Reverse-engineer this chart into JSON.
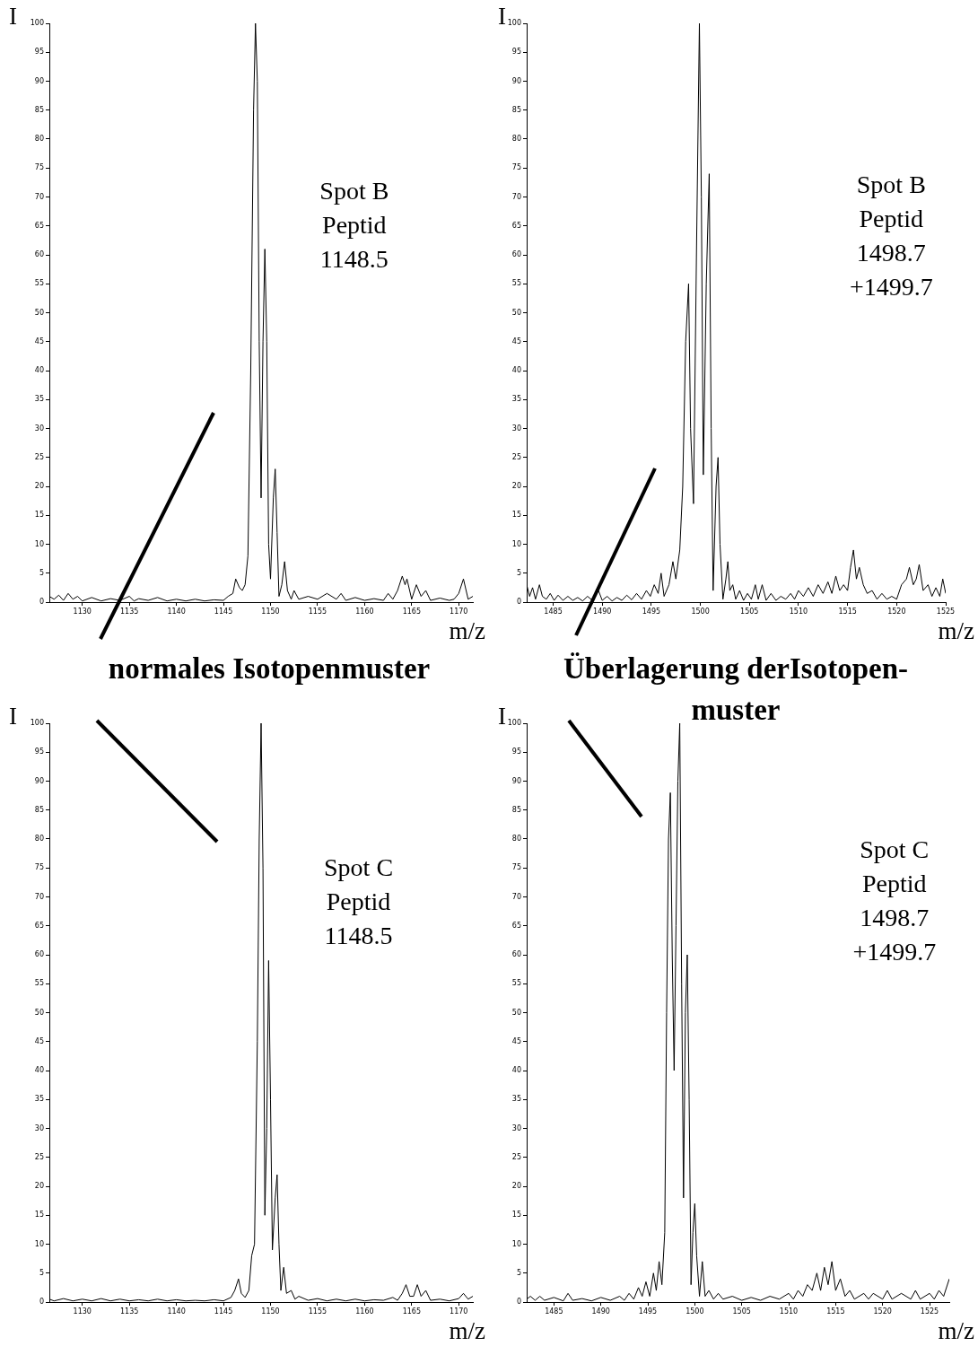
{
  "chart_data": [
    {
      "type": "line",
      "xlabel": "m/z",
      "ylabel": "I",
      "grid": false,
      "marker": "none",
      "xlim": [
        1126.5,
        1171.5
      ],
      "ylim": [
        0,
        100
      ],
      "xticks": [
        1130,
        1135,
        1140,
        1145,
        1150,
        1155,
        1160,
        1165,
        1170
      ],
      "yticks": [
        0,
        5,
        10,
        15,
        20,
        25,
        30,
        35,
        40,
        45,
        50,
        55,
        60,
        65,
        70,
        75,
        80,
        85,
        90,
        95,
        100
      ],
      "annotations": [
        "Spot B\nPeptid\n1148.5",
        "normales Isotopenmuster"
      ],
      "series": [
        {
          "color": "#000000",
          "x": [
            1126.5,
            1127,
            1127.5,
            1128,
            1128.5,
            1129,
            1129.5,
            1130,
            1131,
            1132,
            1133,
            1134,
            1135,
            1135.5,
            1136,
            1137,
            1138,
            1139,
            1140,
            1141,
            1142,
            1143,
            1144,
            1145,
            1145.5,
            1146,
            1146.3,
            1146.7,
            1147,
            1147.3,
            1147.6,
            1147.9,
            1148.2,
            1148.4,
            1148.6,
            1148.8,
            1149.0,
            1149.2,
            1149.4,
            1149.6,
            1149.8,
            1150.0,
            1150.3,
            1150.5,
            1150.7,
            1150.9,
            1151.2,
            1151.5,
            1151.8,
            1152.2,
            1152.5,
            1153,
            1154,
            1155,
            1156,
            1157,
            1157.5,
            1158,
            1159,
            1160,
            1161,
            1162,
            1162.5,
            1163,
            1163.5,
            1164,
            1164.3,
            1164.5,
            1165,
            1165.5,
            1166,
            1166.5,
            1167,
            1168,
            1169,
            1169.5,
            1170,
            1170.5,
            1171,
            1171.5
          ],
          "values": [
            1,
            0.5,
            1.2,
            0.3,
            1.5,
            0.5,
            1,
            0.2,
            0.8,
            0.2,
            0.6,
            0.3,
            1,
            0.2,
            0.6,
            0.3,
            0.8,
            0.2,
            0.5,
            0.2,
            0.5,
            0.2,
            0.4,
            0.3,
            1,
            1.5,
            4,
            2.5,
            2,
            3,
            8,
            40,
            85,
            100,
            90,
            45,
            18,
            45,
            61,
            45,
            10,
            4,
            18,
            23,
            12,
            1,
            3,
            7,
            2,
            0.5,
            2,
            0.5,
            1,
            0.5,
            1.5,
            0.5,
            1.5,
            0.3,
            0.8,
            0.3,
            0.6,
            0.3,
            1.5,
            0.5,
            2,
            4.5,
            3,
            4,
            0.5,
            3,
            1,
            2,
            0.3,
            0.7,
            0.3,
            0.5,
            1.5,
            4,
            0.5,
            1
          ]
        }
      ]
    },
    {
      "type": "line",
      "xlabel": "m/z",
      "ylabel": "I",
      "grid": false,
      "marker": "none",
      "xlim": [
        1482.3,
        1525
      ],
      "ylim": [
        0,
        100
      ],
      "xticks": [
        1485,
        1490,
        1495,
        1500,
        1505,
        1510,
        1515,
        1520,
        1525
      ],
      "yticks": [
        0,
        5,
        10,
        15,
        20,
        25,
        30,
        35,
        40,
        45,
        50,
        55,
        60,
        65,
        70,
        75,
        80,
        85,
        90,
        95,
        100
      ],
      "annotations": [
        "Spot B\nPeptid\n1498.7\n+1499.7",
        "Überlagerung derIsotopen-muster"
      ],
      "series": [
        {
          "color": "#000000",
          "x": [
            1482.3,
            1482.6,
            1482.9,
            1483.2,
            1483.6,
            1483.9,
            1484.3,
            1484.7,
            1485.1,
            1485.5,
            1486,
            1486.5,
            1487,
            1487.5,
            1488,
            1488.5,
            1489,
            1489.5,
            1490,
            1490.5,
            1491,
            1491.5,
            1492,
            1492.5,
            1493,
            1493.5,
            1494,
            1494.5,
            1494.9,
            1495.3,
            1495.7,
            1496,
            1496.3,
            1496.8,
            1497.2,
            1497.5,
            1497.9,
            1498.2,
            1498.5,
            1498.8,
            1499.0,
            1499.3,
            1499.6,
            1499.9,
            1500.1,
            1500.3,
            1500.6,
            1500.9,
            1501.1,
            1501.3,
            1501.6,
            1501.8,
            1502.0,
            1502.3,
            1502.6,
            1502.8,
            1503,
            1503.3,
            1503.6,
            1504,
            1504.4,
            1504.8,
            1505.2,
            1505.6,
            1505.9,
            1506.3,
            1506.7,
            1507.2,
            1507.7,
            1508.2,
            1508.7,
            1509.2,
            1509.6,
            1510,
            1510.5,
            1511,
            1511.5,
            1512,
            1512.5,
            1513,
            1513.4,
            1513.8,
            1514.2,
            1514.6,
            1515,
            1515.3,
            1515.6,
            1515.9,
            1516.2,
            1516.6,
            1517,
            1517.5,
            1518,
            1518.5,
            1519,
            1519.5,
            1520,
            1520.5,
            1521,
            1521.3,
            1521.7,
            1522,
            1522.3,
            1522.7,
            1523.2,
            1523.6,
            1524,
            1524.4,
            1524.7,
            1525
          ],
          "values": [
            3,
            1,
            2.5,
            0.5,
            3,
            1,
            0.5,
            1.5,
            0.3,
            1.2,
            0.3,
            1,
            0.3,
            0.8,
            0.2,
            1,
            0.3,
            2.5,
            0.3,
            1,
            0.2,
            0.8,
            0.3,
            1.2,
            0.4,
            1.5,
            0.5,
            2,
            1,
            3,
            1.5,
            5,
            1,
            3,
            7,
            4,
            9,
            20,
            45,
            55,
            30,
            17,
            60,
            100,
            70,
            22,
            55,
            74,
            30,
            2,
            20,
            25,
            10,
            0.5,
            4,
            7,
            2,
            3,
            0.5,
            2,
            0.3,
            1.5,
            0.5,
            3,
            0.5,
            3,
            0.3,
            1.5,
            0.3,
            1,
            0.5,
            1.5,
            0.5,
            2,
            1,
            2.5,
            1,
            3,
            1.5,
            3.5,
            1.5,
            4.5,
            2,
            3,
            2,
            6,
            9,
            4,
            6,
            3,
            1.5,
            2,
            0.5,
            1.5,
            0.5,
            1,
            0.5,
            3,
            4,
            6,
            3,
            4,
            6.5,
            2,
            3,
            1,
            2.5,
            1,
            4,
            1.5
          ]
        }
      ]
    },
    {
      "type": "line",
      "xlabel": "m/z",
      "ylabel": "I",
      "grid": false,
      "marker": "none",
      "xlim": [
        1126.5,
        1171.5
      ],
      "ylim": [
        0,
        100
      ],
      "xticks": [
        1130,
        1135,
        1140,
        1145,
        1150,
        1155,
        1160,
        1165,
        1170
      ],
      "yticks": [
        0,
        5,
        10,
        15,
        20,
        25,
        30,
        35,
        40,
        45,
        50,
        55,
        60,
        65,
        70,
        75,
        80,
        85,
        90,
        95,
        100
      ],
      "annotations": [
        "Spot C\nPeptid\n1148.5"
      ],
      "series": [
        {
          "color": "#000000",
          "x": [
            1126.5,
            1127,
            1128,
            1129,
            1130,
            1131,
            1132,
            1133,
            1134,
            1135,
            1136,
            1137,
            1138,
            1139,
            1140,
            1141,
            1142,
            1143,
            1144,
            1145,
            1145.8,
            1146.2,
            1146.6,
            1146.9,
            1147.3,
            1147.7,
            1148.0,
            1148.3,
            1148.6,
            1148.8,
            1149.0,
            1149.2,
            1149.4,
            1149.6,
            1149.8,
            1150.0,
            1150.2,
            1150.5,
            1150.7,
            1150.9,
            1151.1,
            1151.4,
            1151.7,
            1152.2,
            1152.6,
            1153,
            1154,
            1155,
            1156,
            1157,
            1158,
            1159,
            1160,
            1161,
            1162,
            1163,
            1163.5,
            1164,
            1164.4,
            1164.8,
            1165.2,
            1165.6,
            1166,
            1166.5,
            1167,
            1168,
            1169,
            1170,
            1170.5,
            1171,
            1171.5
          ],
          "values": [
            0.5,
            0.2,
            0.6,
            0.2,
            0.5,
            0.2,
            0.6,
            0.2,
            0.5,
            0.2,
            0.4,
            0.2,
            0.5,
            0.2,
            0.4,
            0.2,
            0.3,
            0.2,
            0.4,
            0.2,
            0.8,
            2,
            4,
            1.5,
            0.8,
            2,
            8,
            10,
            45,
            80,
            100,
            75,
            15,
            30,
            59,
            35,
            9,
            18,
            22,
            10,
            2,
            6,
            1.5,
            2,
            0.5,
            1,
            0.3,
            0.6,
            0.2,
            0.5,
            0.2,
            0.5,
            0.2,
            0.4,
            0.3,
            0.8,
            0.3,
            1.5,
            3,
            1,
            1,
            3,
            1,
            2,
            0.3,
            0.5,
            0.2,
            0.6,
            1.5,
            0.5,
            1
          ]
        }
      ]
    },
    {
      "type": "line",
      "xlabel": "m/z",
      "ylabel": "I",
      "grid": false,
      "marker": "none",
      "xlim": [
        1482.1,
        1527.1
      ],
      "ylim": [
        0,
        100
      ],
      "xticks": [
        1485,
        1490,
        1495,
        1500,
        1505,
        1510,
        1515,
        1520,
        1525
      ],
      "yticks": [
        0,
        5,
        10,
        15,
        20,
        25,
        30,
        35,
        40,
        45,
        50,
        55,
        60,
        65,
        70,
        75,
        80,
        85,
        90,
        95,
        100
      ],
      "annotations": [
        "Spot C\nPeptid\n1498.7\n+1499.7"
      ],
      "series": [
        {
          "color": "#000000",
          "x": [
            1482.1,
            1482.5,
            1483,
            1483.5,
            1484,
            1485,
            1486,
            1486.5,
            1487,
            1488,
            1489,
            1490,
            1491,
            1492,
            1492.5,
            1493,
            1493.5,
            1494,
            1494.4,
            1494.8,
            1495.2,
            1495.6,
            1495.9,
            1496.2,
            1496.5,
            1496.8,
            1497.0,
            1497.2,
            1497.4,
            1497.6,
            1497.8,
            1498.0,
            1498.2,
            1498.4,
            1498.6,
            1498.8,
            1499.0,
            1499.2,
            1499.4,
            1499.6,
            1499.8,
            1500.0,
            1500.2,
            1500.5,
            1500.8,
            1501.1,
            1501.5,
            1502,
            1502.5,
            1503,
            1504,
            1505,
            1506,
            1507,
            1508,
            1509,
            1510,
            1510.5,
            1511,
            1511.5,
            1512,
            1512.5,
            1513,
            1513.4,
            1513.8,
            1514.2,
            1514.6,
            1515,
            1515.5,
            1516,
            1516.5,
            1517,
            1518,
            1518.5,
            1519,
            1520,
            1520.5,
            1521,
            1522,
            1523,
            1523.5,
            1524,
            1525,
            1525.5,
            1526,
            1526.5,
            1527.1
          ],
          "values": [
            0.5,
            1,
            0.3,
            1,
            0.3,
            0.8,
            0.2,
            1.5,
            0.3,
            0.6,
            0.2,
            0.8,
            0.3,
            1,
            0.3,
            1.5,
            0.5,
            2.5,
            1,
            3.5,
            1,
            5,
            2,
            7,
            3,
            12,
            50,
            80,
            88,
            60,
            40,
            65,
            90,
            100,
            55,
            18,
            50,
            60,
            35,
            3,
            12,
            17,
            8,
            1,
            7,
            1,
            2,
            0.5,
            1.5,
            0.5,
            1,
            0.3,
            0.8,
            0.3,
            1,
            0.5,
            1.5,
            0.5,
            2,
            1,
            3,
            2,
            5,
            2,
            6,
            3,
            7,
            2,
            4,
            1,
            2,
            0.5,
            1.5,
            0.5,
            1.5,
            0.5,
            2,
            0.5,
            1.5,
            0.5,
            2,
            0.5,
            1.5,
            0.5,
            2,
            1,
            4
          ]
        }
      ]
    }
  ]
}
